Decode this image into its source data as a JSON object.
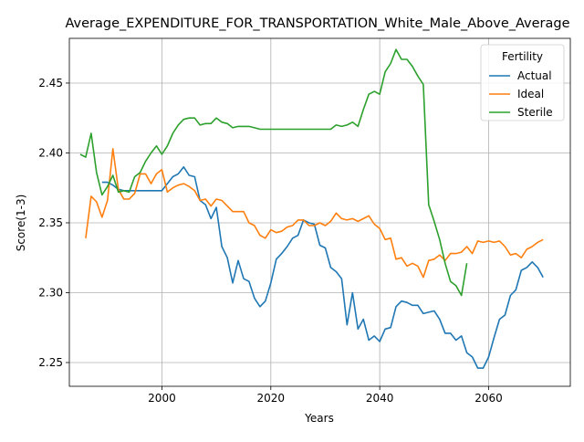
{
  "chart_data": {
    "type": "line",
    "title": "Average_EXPENDITURE_FOR_TRANSPORTATION_White_Male_Above_Average",
    "xlabel": "Years",
    "ylabel": "Score(1-3)",
    "xlim": [
      1983,
      2075
    ],
    "ylim": [
      2.233,
      2.482
    ],
    "xticks": [
      2000,
      2020,
      2040,
      2060
    ],
    "yticks": [
      2.25,
      2.3,
      2.35,
      2.4,
      2.45
    ],
    "ytick_labels": [
      "2.25",
      "2.30",
      "2.35",
      "2.40",
      "2.45"
    ],
    "grid": true,
    "legend": {
      "title": "Fertility",
      "placement": "top-right"
    },
    "series": [
      {
        "name": "Actual",
        "color": "#1f77b4",
        "x": [
          1989,
          1990,
          1991,
          1992,
          1993,
          1994,
          1995,
          1996,
          1997,
          1998,
          1999,
          2000,
          2001,
          2002,
          2003,
          2004,
          2005,
          2006,
          2007,
          2008,
          2009,
          2010,
          2011,
          2012,
          2013,
          2014,
          2015,
          2016,
          2017,
          2018,
          2019,
          2020,
          2021,
          2022,
          2023,
          2024,
          2025,
          2026,
          2027,
          2028,
          2029,
          2030,
          2031,
          2032,
          2033,
          2034,
          2035,
          2036,
          2037,
          2038,
          2039,
          2040,
          2041,
          2042,
          2043,
          2044,
          2045,
          2046,
          2047,
          2048,
          2049,
          2050,
          2051,
          2052,
          2053,
          2054,
          2055,
          2056,
          2057,
          2058,
          2059,
          2060,
          2061,
          2062,
          2063,
          2064,
          2065,
          2066,
          2067,
          2068,
          2069,
          2070
        ],
        "y": [
          2.379,
          2.379,
          2.377,
          2.374,
          2.373,
          2.373,
          2.373,
          2.373,
          2.373,
          2.373,
          2.373,
          2.373,
          2.378,
          2.383,
          2.385,
          2.39,
          2.384,
          2.383,
          2.366,
          2.363,
          2.353,
          2.361,
          2.333,
          2.325,
          2.307,
          2.323,
          2.31,
          2.308,
          2.296,
          2.29,
          2.294,
          2.307,
          2.324,
          2.328,
          2.333,
          2.339,
          2.341,
          2.352,
          2.35,
          2.349,
          2.334,
          2.332,
          2.318,
          2.315,
          2.31,
          2.277,
          2.3,
          2.274,
          2.281,
          2.266,
          2.269,
          2.265,
          2.274,
          2.275,
          2.29,
          2.294,
          2.293,
          2.291,
          2.291,
          2.285,
          2.286,
          2.287,
          2.281,
          2.271,
          2.271,
          2.266,
          2.269,
          2.257,
          2.254,
          2.246,
          2.246,
          2.254,
          2.268,
          2.281,
          2.284,
          2.298,
          2.302,
          2.316,
          2.318,
          2.322,
          2.318,
          2.311
        ]
      },
      {
        "name": "Ideal",
        "color": "#ff7f0e",
        "x": [
          1986,
          1987,
          1988,
          1989,
          1990,
          1991,
          1992,
          1993,
          1994,
          1995,
          1996,
          1997,
          1998,
          1999,
          2000,
          2001,
          2002,
          2003,
          2004,
          2005,
          2006,
          2007,
          2008,
          2009,
          2010,
          2011,
          2012,
          2013,
          2014,
          2015,
          2016,
          2017,
          2018,
          2019,
          2020,
          2021,
          2022,
          2023,
          2024,
          2025,
          2026,
          2027,
          2028,
          2029,
          2030,
          2031,
          2032,
          2033,
          2034,
          2035,
          2036,
          2037,
          2038,
          2039,
          2040,
          2041,
          2042,
          2043,
          2044,
          2045,
          2046,
          2047,
          2048,
          2049,
          2050,
          2051,
          2052,
          2053,
          2054,
          2055,
          2056,
          2057,
          2058,
          2059,
          2060,
          2061,
          2062,
          2063,
          2064,
          2065,
          2066,
          2067,
          2068,
          2069,
          2070
        ],
        "y": [
          2.339,
          2.369,
          2.365,
          2.354,
          2.366,
          2.403,
          2.374,
          2.367,
          2.367,
          2.371,
          2.385,
          2.385,
          2.378,
          2.385,
          2.388,
          2.372,
          2.375,
          2.377,
          2.378,
          2.376,
          2.373,
          2.366,
          2.367,
          2.362,
          2.367,
          2.366,
          2.362,
          2.358,
          2.358,
          2.358,
          2.35,
          2.348,
          2.341,
          2.339,
          2.345,
          2.343,
          2.344,
          2.347,
          2.348,
          2.352,
          2.352,
          2.348,
          2.348,
          2.35,
          2.348,
          2.351,
          2.357,
          2.353,
          2.352,
          2.353,
          2.351,
          2.353,
          2.355,
          2.349,
          2.346,
          2.338,
          2.339,
          2.324,
          2.325,
          2.319,
          2.321,
          2.319,
          2.311,
          2.323,
          2.324,
          2.327,
          2.323,
          2.328,
          2.328,
          2.329,
          2.333,
          2.328,
          2.337,
          2.336,
          2.337,
          2.336,
          2.337,
          2.333,
          2.327,
          2.328,
          2.325,
          2.331,
          2.333,
          2.336,
          2.338
        ]
      },
      {
        "name": "Sterile",
        "color": "#2ca02c",
        "x": [
          1985,
          1986,
          1987,
          1988,
          1989,
          1990,
          1991,
          1992,
          1993,
          1994,
          1995,
          1996,
          1997,
          1998,
          1999,
          2000,
          2001,
          2002,
          2003,
          2004,
          2005,
          2006,
          2007,
          2008,
          2009,
          2010,
          2011,
          2012,
          2013,
          2014,
          2015,
          2016,
          2017,
          2018,
          2019,
          2020,
          2021,
          2022,
          2023,
          2024,
          2025,
          2026,
          2027,
          2028,
          2029,
          2030,
          2031,
          2032,
          2033,
          2034,
          2035,
          2036,
          2037,
          2038,
          2039,
          2040,
          2041,
          2042,
          2043,
          2044,
          2045,
          2046,
          2047,
          2048,
          2049,
          2050,
          2051,
          2052,
          2053,
          2054,
          2055,
          2056
        ],
        "y": [
          2.399,
          2.397,
          2.414,
          2.386,
          2.37,
          2.376,
          2.384,
          2.372,
          2.373,
          2.372,
          2.383,
          2.386,
          2.394,
          2.4,
          2.405,
          2.399,
          2.405,
          2.414,
          2.42,
          2.424,
          2.425,
          2.425,
          2.42,
          2.421,
          2.421,
          2.425,
          2.422,
          2.421,
          2.418,
          2.419,
          2.419,
          2.419,
          2.418,
          2.417,
          2.417,
          2.417,
          2.417,
          2.417,
          2.417,
          2.417,
          2.417,
          2.417,
          2.417,
          2.417,
          2.417,
          2.417,
          2.417,
          2.42,
          2.419,
          2.42,
          2.422,
          2.419,
          2.431,
          2.442,
          2.444,
          2.442,
          2.458,
          2.464,
          2.474,
          2.467,
          2.467,
          2.462,
          2.455,
          2.449,
          2.363,
          2.351,
          2.338,
          2.321,
          2.308,
          2.305,
          2.298,
          2.321
        ]
      }
    ]
  }
}
